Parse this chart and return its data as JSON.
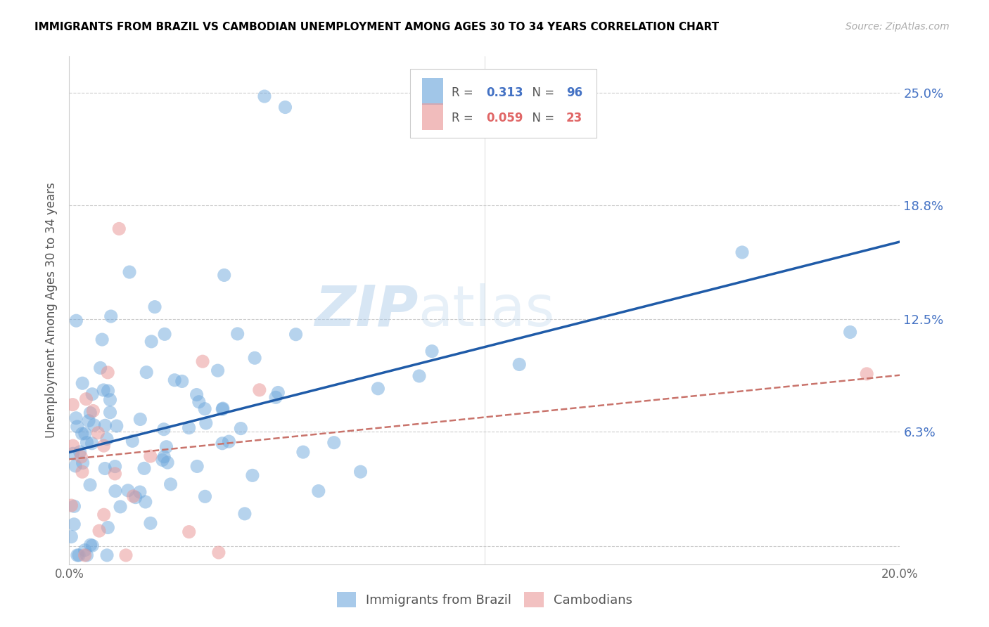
{
  "title": "IMMIGRANTS FROM BRAZIL VS CAMBODIAN UNEMPLOYMENT AMONG AGES 30 TO 34 YEARS CORRELATION CHART",
  "source": "Source: ZipAtlas.com",
  "ylabel": "Unemployment Among Ages 30 to 34 years",
  "xlim": [
    0.0,
    0.2
  ],
  "ylim": [
    -0.01,
    0.27
  ],
  "yticks": [
    0.0,
    0.063,
    0.125,
    0.188,
    0.25
  ],
  "ytick_labels": [
    "",
    "6.3%",
    "12.5%",
    "18.8%",
    "25.0%"
  ],
  "xticks": [
    0.0,
    0.05,
    0.1,
    0.15,
    0.2
  ],
  "xtick_labels": [
    "0.0%",
    "",
    "",
    "",
    "20.0%"
  ],
  "brazil_R": 0.313,
  "brazil_N": 96,
  "cambodian_R": 0.059,
  "cambodian_N": 23,
  "brazil_color": "#6fa8dc",
  "cambodian_color": "#ea9999",
  "brazil_line_color": "#1f5ba8",
  "cambodian_line_color": "#c9736b",
  "watermark_zip": "ZIP",
  "watermark_atlas": "atlas",
  "legend_brazil_label": "Immigrants from Brazil",
  "legend_cambodian_label": "Cambodians"
}
